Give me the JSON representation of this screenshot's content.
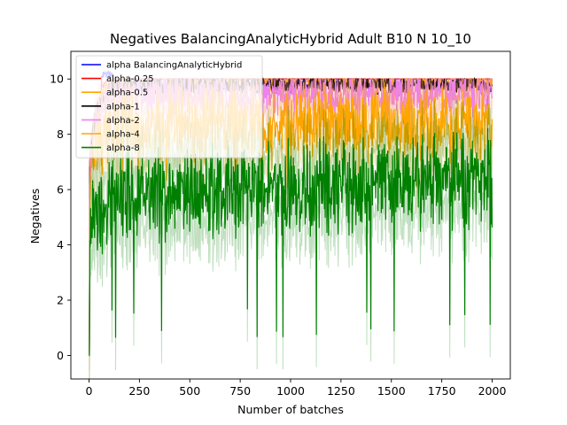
{
  "chart_data": {
    "type": "line",
    "title": "Negatives BalancingAnalyticHybrid Adult B10 N 10_10",
    "xlabel": "Number of batches",
    "ylabel": "Negatives",
    "xlim": [
      -90,
      2090
    ],
    "ylim": [
      -0.85,
      11.0
    ],
    "xticks": [
      0,
      250,
      500,
      750,
      1000,
      1250,
      1500,
      1750,
      2000
    ],
    "yticks": [
      0,
      2,
      4,
      6,
      8,
      10
    ],
    "legend_position": "top-left",
    "grid": false,
    "n_batches": 2000,
    "series": [
      {
        "name": "alpha BalancingAnalyticHybrid",
        "color": "#0000ff",
        "level": 10.0,
        "min": 10.0,
        "spread": 0.0,
        "shade": false
      },
      {
        "name": "alpha-0.25",
        "color": "#ff0000",
        "level": 10.0,
        "min": 9.7,
        "spread": 0.0,
        "shade": false
      },
      {
        "name": "alpha-0.5",
        "color": "#ffa500",
        "level": 9.9,
        "min": 8.6,
        "spread": 0.3,
        "shade": false
      },
      {
        "name": "alpha-1",
        "color": "#000000",
        "level": 9.8,
        "min": 8.8,
        "spread": 0.3,
        "shade": false
      },
      {
        "name": "alpha-2",
        "color": "#ee82ee",
        "level": 9.4,
        "min": 7.5,
        "spread": 0.6,
        "shade": true
      },
      {
        "name": "alpha-4",
        "color": "#ffa500",
        "level": 8.4,
        "min": 6.0,
        "spread": 1.0,
        "shade": true
      },
      {
        "name": "alpha-8",
        "color": "#008000",
        "level": 5.8,
        "min": 0.6,
        "spread": 1.3,
        "shade": true
      }
    ]
  }
}
